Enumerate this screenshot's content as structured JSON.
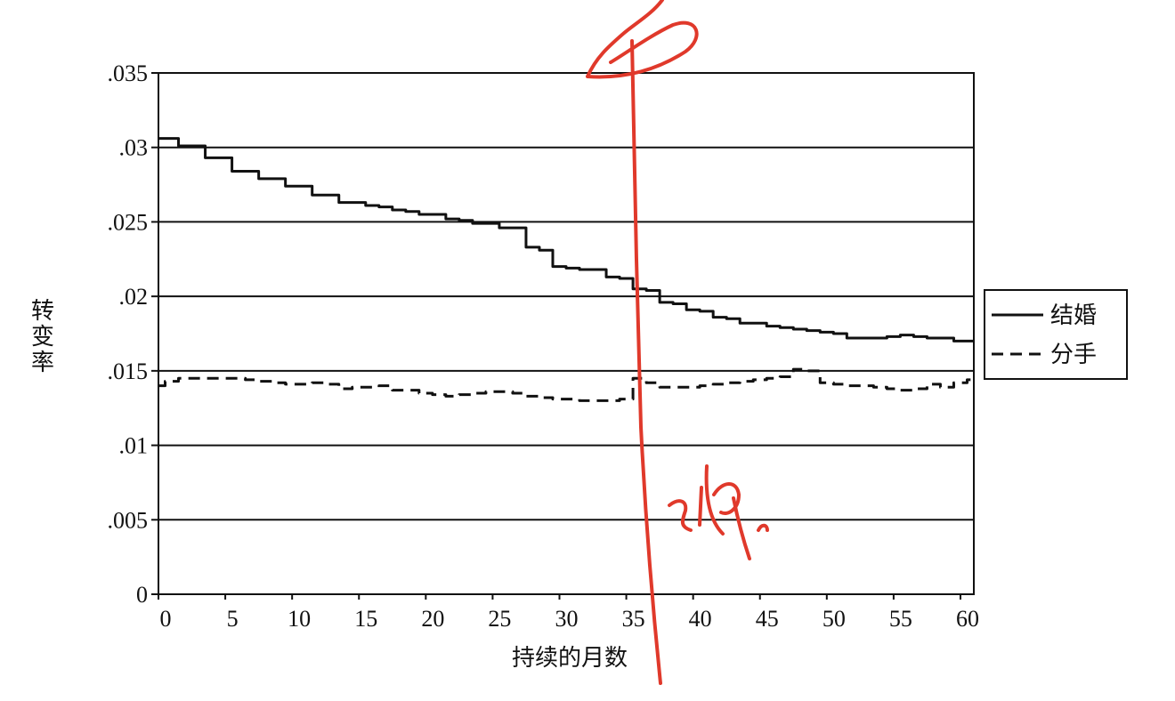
{
  "chart_data": {
    "type": "line",
    "title": "",
    "xlabel": "持续的月数",
    "ylabel": "转变率",
    "xlim": [
      0,
      61
    ],
    "ylim": [
      0,
      0.035
    ],
    "xticks": [
      0,
      5,
      10,
      15,
      20,
      25,
      30,
      35,
      40,
      45,
      50,
      55,
      60
    ],
    "xtick_labels": [
      "0",
      "5",
      "10",
      "15",
      "20",
      "25",
      "30",
      "35",
      "40",
      "45",
      "50",
      "55",
      "60"
    ],
    "yticks": [
      0,
      0.005,
      0.01,
      0.015,
      0.02,
      0.025,
      0.03,
      0.035
    ],
    "ytick_labels": [
      "0",
      ".005",
      ".01",
      ".015",
      ".02",
      ".025",
      ".03",
      ".035"
    ],
    "grid": "horizontal",
    "legend_position": "right",
    "series": [
      {
        "name": "结婚",
        "style": "solid",
        "color": "#111111",
        "x": [
          0,
          1,
          2,
          3,
          4,
          5,
          6,
          7,
          8,
          9,
          10,
          11,
          12,
          13,
          14,
          15,
          16,
          17,
          18,
          19,
          20,
          21,
          22,
          23,
          24,
          25,
          26,
          27,
          28,
          29,
          30,
          31,
          32,
          33,
          34,
          35,
          36,
          37,
          38,
          39,
          40,
          41,
          42,
          43,
          44,
          45,
          46,
          47,
          48,
          49,
          50,
          51,
          52,
          53,
          54,
          55,
          56,
          57,
          58,
          59,
          60,
          61
        ],
        "values": [
          0.0306,
          0.0306,
          0.0301,
          0.0301,
          0.0293,
          0.0293,
          0.0284,
          0.0284,
          0.0279,
          0.0279,
          0.0274,
          0.0274,
          0.0268,
          0.0268,
          0.0263,
          0.0263,
          0.0261,
          0.026,
          0.0258,
          0.0257,
          0.0255,
          0.0255,
          0.0252,
          0.0251,
          0.0249,
          0.0249,
          0.0246,
          0.0246,
          0.0233,
          0.0231,
          0.022,
          0.0219,
          0.0218,
          0.0218,
          0.0213,
          0.0212,
          0.0205,
          0.0204,
          0.0196,
          0.0195,
          0.0191,
          0.019,
          0.0186,
          0.0185,
          0.0182,
          0.0182,
          0.018,
          0.0179,
          0.0178,
          0.0177,
          0.0176,
          0.0175,
          0.0172,
          0.0172,
          0.0172,
          0.0173,
          0.0174,
          0.0173,
          0.0172,
          0.0172,
          0.017,
          0.017
        ]
      },
      {
        "name": "分手",
        "style": "dashed",
        "color": "#111111",
        "x": [
          0,
          1,
          2,
          3,
          4,
          5,
          6,
          7,
          8,
          9,
          10,
          11,
          12,
          13,
          14,
          15,
          16,
          17,
          18,
          19,
          20,
          21,
          22,
          23,
          24,
          25,
          26,
          27,
          28,
          29,
          30,
          31,
          32,
          33,
          34,
          35,
          36,
          37,
          38,
          39,
          40,
          41,
          42,
          43,
          44,
          45,
          46,
          47,
          48,
          49,
          50,
          51,
          52,
          53,
          54,
          55,
          56,
          57,
          58,
          59,
          60,
          61
        ],
        "values": [
          0.014,
          0.0143,
          0.0145,
          0.0145,
          0.0145,
          0.0145,
          0.0145,
          0.0144,
          0.0143,
          0.0142,
          0.0141,
          0.0141,
          0.0142,
          0.0141,
          0.0138,
          0.0139,
          0.0139,
          0.014,
          0.0137,
          0.0137,
          0.0135,
          0.0134,
          0.0133,
          0.0134,
          0.0135,
          0.0136,
          0.0136,
          0.0135,
          0.0133,
          0.0132,
          0.0131,
          0.0131,
          0.013,
          0.013,
          0.013,
          0.0131,
          0.0145,
          0.0142,
          0.0139,
          0.0139,
          0.0139,
          0.014,
          0.0141,
          0.0142,
          0.0143,
          0.0144,
          0.0145,
          0.0146,
          0.0151,
          0.015,
          0.0142,
          0.0141,
          0.014,
          0.014,
          0.0139,
          0.0138,
          0.0137,
          0.0138,
          0.0141,
          0.0139,
          0.0142,
          0.0144
        ]
      }
    ]
  }
}
